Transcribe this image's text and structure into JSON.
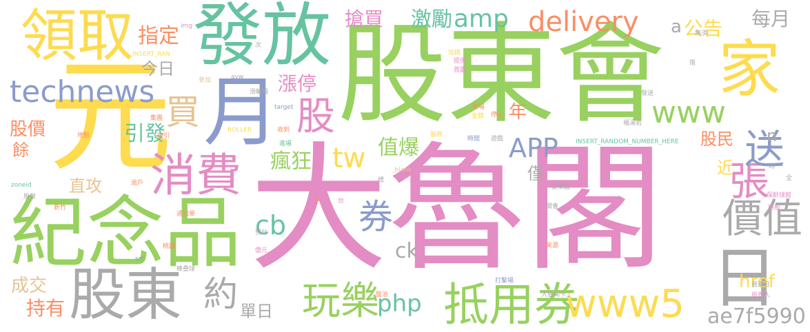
{
  "words": [
    {
      "text": "股東會",
      "color": "#98d15f"
    },
    {
      "text": "大魯閣",
      "color": "#e48cc4"
    },
    {
      "text": "元",
      "color": "#fedb4f"
    },
    {
      "text": "紀念品",
      "color": "#98d15f"
    },
    {
      "text": "發放",
      "color": "#66c3a1"
    },
    {
      "text": "領取",
      "color": "#fedb4f"
    },
    {
      "text": "股東",
      "color": "#aaaaaa"
    },
    {
      "text": "家",
      "color": "#fedb4f"
    },
    {
      "text": "月",
      "color": "#8b9bcb"
    },
    {
      "text": "日",
      "color": "#aaaaaa"
    },
    {
      "text": "消費",
      "color": "#e48cc4"
    },
    {
      "text": "抵用券",
      "color": "#98d15f"
    },
    {
      "text": "technews",
      "color": "#8b9bcb"
    },
    {
      "text": "www5",
      "color": "#fedb4f"
    },
    {
      "text": "玩樂",
      "color": "#98d15f"
    },
    {
      "text": "價值",
      "color": "#aaaaaa"
    },
    {
      "text": "張",
      "color": "#e48cc4"
    },
    {
      "text": "送",
      "color": "#8b9bcb"
    },
    {
      "text": "股",
      "color": "#e48cc4"
    },
    {
      "text": "買",
      "color": "#e4c493"
    },
    {
      "text": "約",
      "color": "#aaaaaa"
    },
    {
      "text": "券",
      "color": "#8b9bcb"
    },
    {
      "text": "delivery",
      "color": "#fc8d62"
    },
    {
      "text": "amp",
      "color": "#66c3a1"
    },
    {
      "text": "www",
      "color": "#98d15f"
    },
    {
      "text": "APP",
      "color": "#8b9bcb"
    },
    {
      "text": "tw",
      "color": "#fedb4f"
    },
    {
      "text": "cb",
      "color": "#66c3a1"
    },
    {
      "text": "php",
      "color": "#66c3a1"
    },
    {
      "text": "ae7f5990",
      "color": "#aaaaaa"
    },
    {
      "text": "ck",
      "color": "#aaaaaa"
    },
    {
      "text": "href",
      "color": "#fedb4f"
    },
    {
      "text": "指定",
      "color": "#fc8d62"
    },
    {
      "text": "瘋狂",
      "color": "#98d15f"
    },
    {
      "text": "值爆",
      "color": "#98d15f"
    },
    {
      "text": "引發",
      "color": "#66c3a1"
    },
    {
      "text": "激勵",
      "color": "#66c3a1"
    },
    {
      "text": "搶買",
      "color": "#e48cc4"
    },
    {
      "text": "每月",
      "color": "#aaaaaa"
    },
    {
      "text": "公告",
      "color": "#fedb4f"
    },
    {
      "text": "漲停",
      "color": "#e48cc4"
    },
    {
      "text": "今日",
      "color": "#aaaaaa"
    },
    {
      "text": "股價",
      "color": "#fc8d62"
    },
    {
      "text": "股民",
      "color": "#fc8d62"
    },
    {
      "text": "年",
      "color": "#fc8d62"
    },
    {
      "text": "成交",
      "color": "#e4c493"
    },
    {
      "text": "持有",
      "color": "#fc8d62"
    },
    {
      "text": "單日",
      "color": "#aaaaaa"
    },
    {
      "text": "直攻",
      "color": "#e4c493"
    },
    {
      "text": "僅",
      "color": "#aaaaaa"
    },
    {
      "text": "近",
      "color": "#fedb4f"
    },
    {
      "text": "餘",
      "color": "#fc8d62"
    },
    {
      "text": "a",
      "color": "#aaaaaa"
    },
    {
      "text": "n",
      "color": "#aaaaaa"
    },
    {
      "text": "img",
      "color": "#e48cc4"
    },
    {
      "text": "INSERT_RAN",
      "color": "#fedb4f"
    },
    {
      "text": "參加",
      "color": "#e4c493"
    },
    {
      "text": "次",
      "color": "#aaaaaa"
    },
    {
      "text": "avw",
      "color": "#aaaaaa"
    },
    {
      "text": "滑輪場",
      "color": "#aaaaaa"
    },
    {
      "text": "target",
      "color": "#8b9bcb"
    },
    {
      "text": "集團",
      "color": "#fc8d62"
    },
    {
      "text": "收到",
      "color": "#fc8d62"
    },
    {
      "text": "ROLLER",
      "color": "#fedb4f"
    },
    {
      "text": "地點",
      "color": "#fc8d62"
    },
    {
      "text": "吸引",
      "color": "#fc8d62"
    },
    {
      "text": "zoneid",
      "color": "#66c3a1"
    },
    {
      "text": "股數",
      "color": "#aaaaaa"
    },
    {
      "text": "新竹",
      "color": "#fc8d62"
    },
    {
      "text": "通知單",
      "color": "#fc8d62"
    },
    {
      "text": "桃園",
      "color": "#fc8d62"
    },
    {
      "text": "預計",
      "color": "#aaaaaa"
    },
    {
      "text": "src",
      "color": "#8b9bcb"
    },
    {
      "text": "棒壘球",
      "color": "#aaaaaa"
    },
    {
      "text": "進場",
      "color": "#66c3a1"
    },
    {
      "text": "_blank",
      "color": "#e4c493"
    },
    {
      "text": "過戶",
      "color": "#fc8d62"
    },
    {
      "text": "予",
      "color": "#fc8d62"
    },
    {
      "text": "標",
      "color": "#aaaaaa"
    },
    {
      "text": "台",
      "color": "#e48cc4"
    },
    {
      "text": "億元",
      "color": "#e48cc4"
    },
    {
      "text": "服務",
      "color": "#fedb4f"
    },
    {
      "text": "時間",
      "color": "#8b9bcb"
    },
    {
      "text": "遊戲",
      "color": "#aaaaaa"
    },
    {
      "text": "加碼",
      "color": "#fedb4f"
    },
    {
      "text": "提供",
      "color": "#e48cc4"
    },
    {
      "text": "首圖",
      "color": "#e48cc4"
    },
    {
      "text": "壘場",
      "color": "#fc8d62"
    },
    {
      "text": "金額",
      "color": "#fedb4f"
    },
    {
      "text": "停止",
      "color": "#fc8d62"
    },
    {
      "text": "INSERT_RANDOM_NUMBER_HERE",
      "color": "#66c3a1"
    },
    {
      "text": "愛樂園",
      "color": "#aaaaaa"
    },
    {
      "text": "開會",
      "color": "#aaaaaa"
    },
    {
      "text": "來源",
      "color": "#fc8d62"
    },
    {
      "text": "打擊場",
      "color": "#8b9bcb"
    },
    {
      "text": "大魯閣卡丁",
      "color": "#aaaaaa"
    },
    {
      "text": "盤治",
      "color": "#fc8d62"
    },
    {
      "text": "無須",
      "color": "#aaaaaa"
    },
    {
      "text": "限",
      "color": "#aaaaaa"
    },
    {
      "text": "發送",
      "color": "#aaaaaa"
    },
    {
      "text": "福湯岩",
      "color": "#aaaaaa"
    },
    {
      "text": "均",
      "color": "#aaaaaa"
    },
    {
      "text": "全",
      "color": "#aaaaaa"
    },
    {
      "text": "保齡球館",
      "color": "#e48cc4"
    },
    {
      "text": "持股",
      "color": "#e48cc4"
    },
    {
      "text": "買進日",
      "color": "#aaaaaa"
    },
    {
      "text": "投資人",
      "color": "#e48cc4"
    }
  ]
}
